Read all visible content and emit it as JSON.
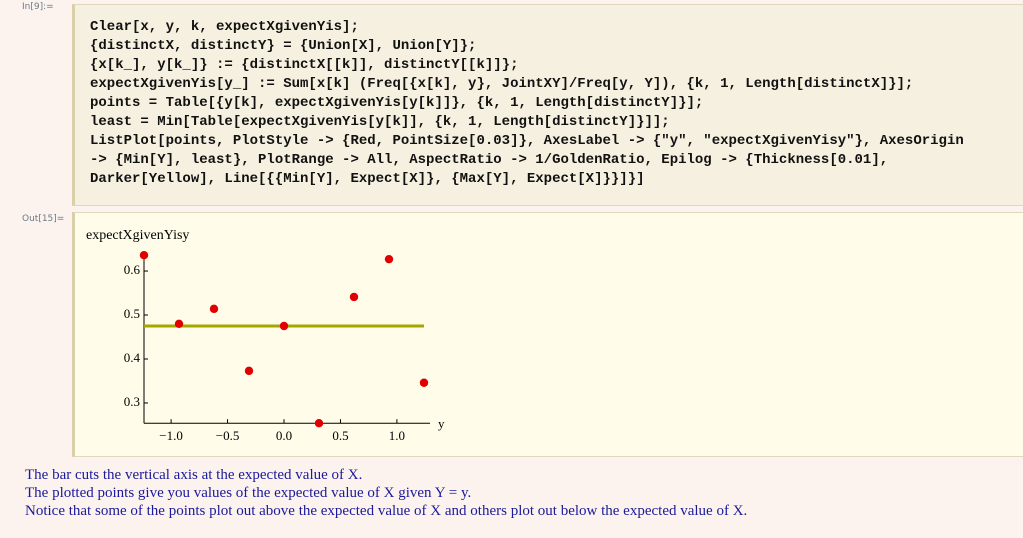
{
  "input": {
    "label": "In[9]:=",
    "lines": [
      "Clear[x, y, k, expectXgivenYis];",
      "{distinctX, distinctY} = {Union[X], Union[Y]};",
      "{x[k_], y[k_]} := {distinctX[[k]], distinctY[[k]]};",
      "expectXgivenYis[y_] := Sum[x[k] (Freq[{x[k], y}, JointXY]/Freq[y, Y]), {k, 1, Length[distinctX]}];",
      "points = Table[{y[k], expectXgivenYis[y[k]]}, {k, 1, Length[distinctY]}];",
      "least = Min[Table[expectXgivenYis[y[k]], {k, 1, Length[distinctY]}]];",
      "ListPlot[points, PlotStyle -> {Red, PointSize[0.03]}, AxesLabel -> {\"y\", \"expectXgivenYisy\"}, AxesOrigin",
      "-> {Min[Y], least}, PlotRange -> All, AspectRatio -> 1/GoldenRatio, Epilog -> {Thickness[0.01],",
      "Darker[Yellow], Line[{{Min[Y], Expect[X]}, {Max[Y], Expect[X]}}]}]"
    ]
  },
  "output": {
    "label": "Out[15]="
  },
  "chart_data": {
    "type": "scatter",
    "x_label": "y",
    "y_label": "expectXgivenYisy",
    "x": [
      -1.24,
      -0.93,
      -0.62,
      -0.31,
      0,
      0.31,
      0.62,
      0.93,
      1.24
    ],
    "values": [
      0.636,
      0.48,
      0.514,
      0.373,
      0.475,
      0.254,
      0.541,
      0.627,
      0.346
    ],
    "color": "#e00000",
    "hline": {
      "value": 0.475,
      "color": "#a9a500"
    },
    "xlim": [
      -1.24,
      1.24
    ],
    "ylim": [
      0.254,
      0.636
    ],
    "xticks": [
      {
        "value": -1.0,
        "label": "−1.0"
      },
      {
        "value": -0.5,
        "label": "−0.5"
      },
      {
        "value": 0.0,
        "label": "0.0"
      },
      0.5,
      {
        "value": 1.0,
        "label": "1.0"
      }
    ],
    "yticks": [
      0.3,
      0.4,
      0.5,
      0.6
    ]
  },
  "text": [
    "The bar cuts the vertical axis at the expected value of X.",
    "The plotted points give you values of the expected value of X given Y = y.",
    "Notice that some of the points plot out above the expected value of X and others plot out below the expected value of X."
  ]
}
